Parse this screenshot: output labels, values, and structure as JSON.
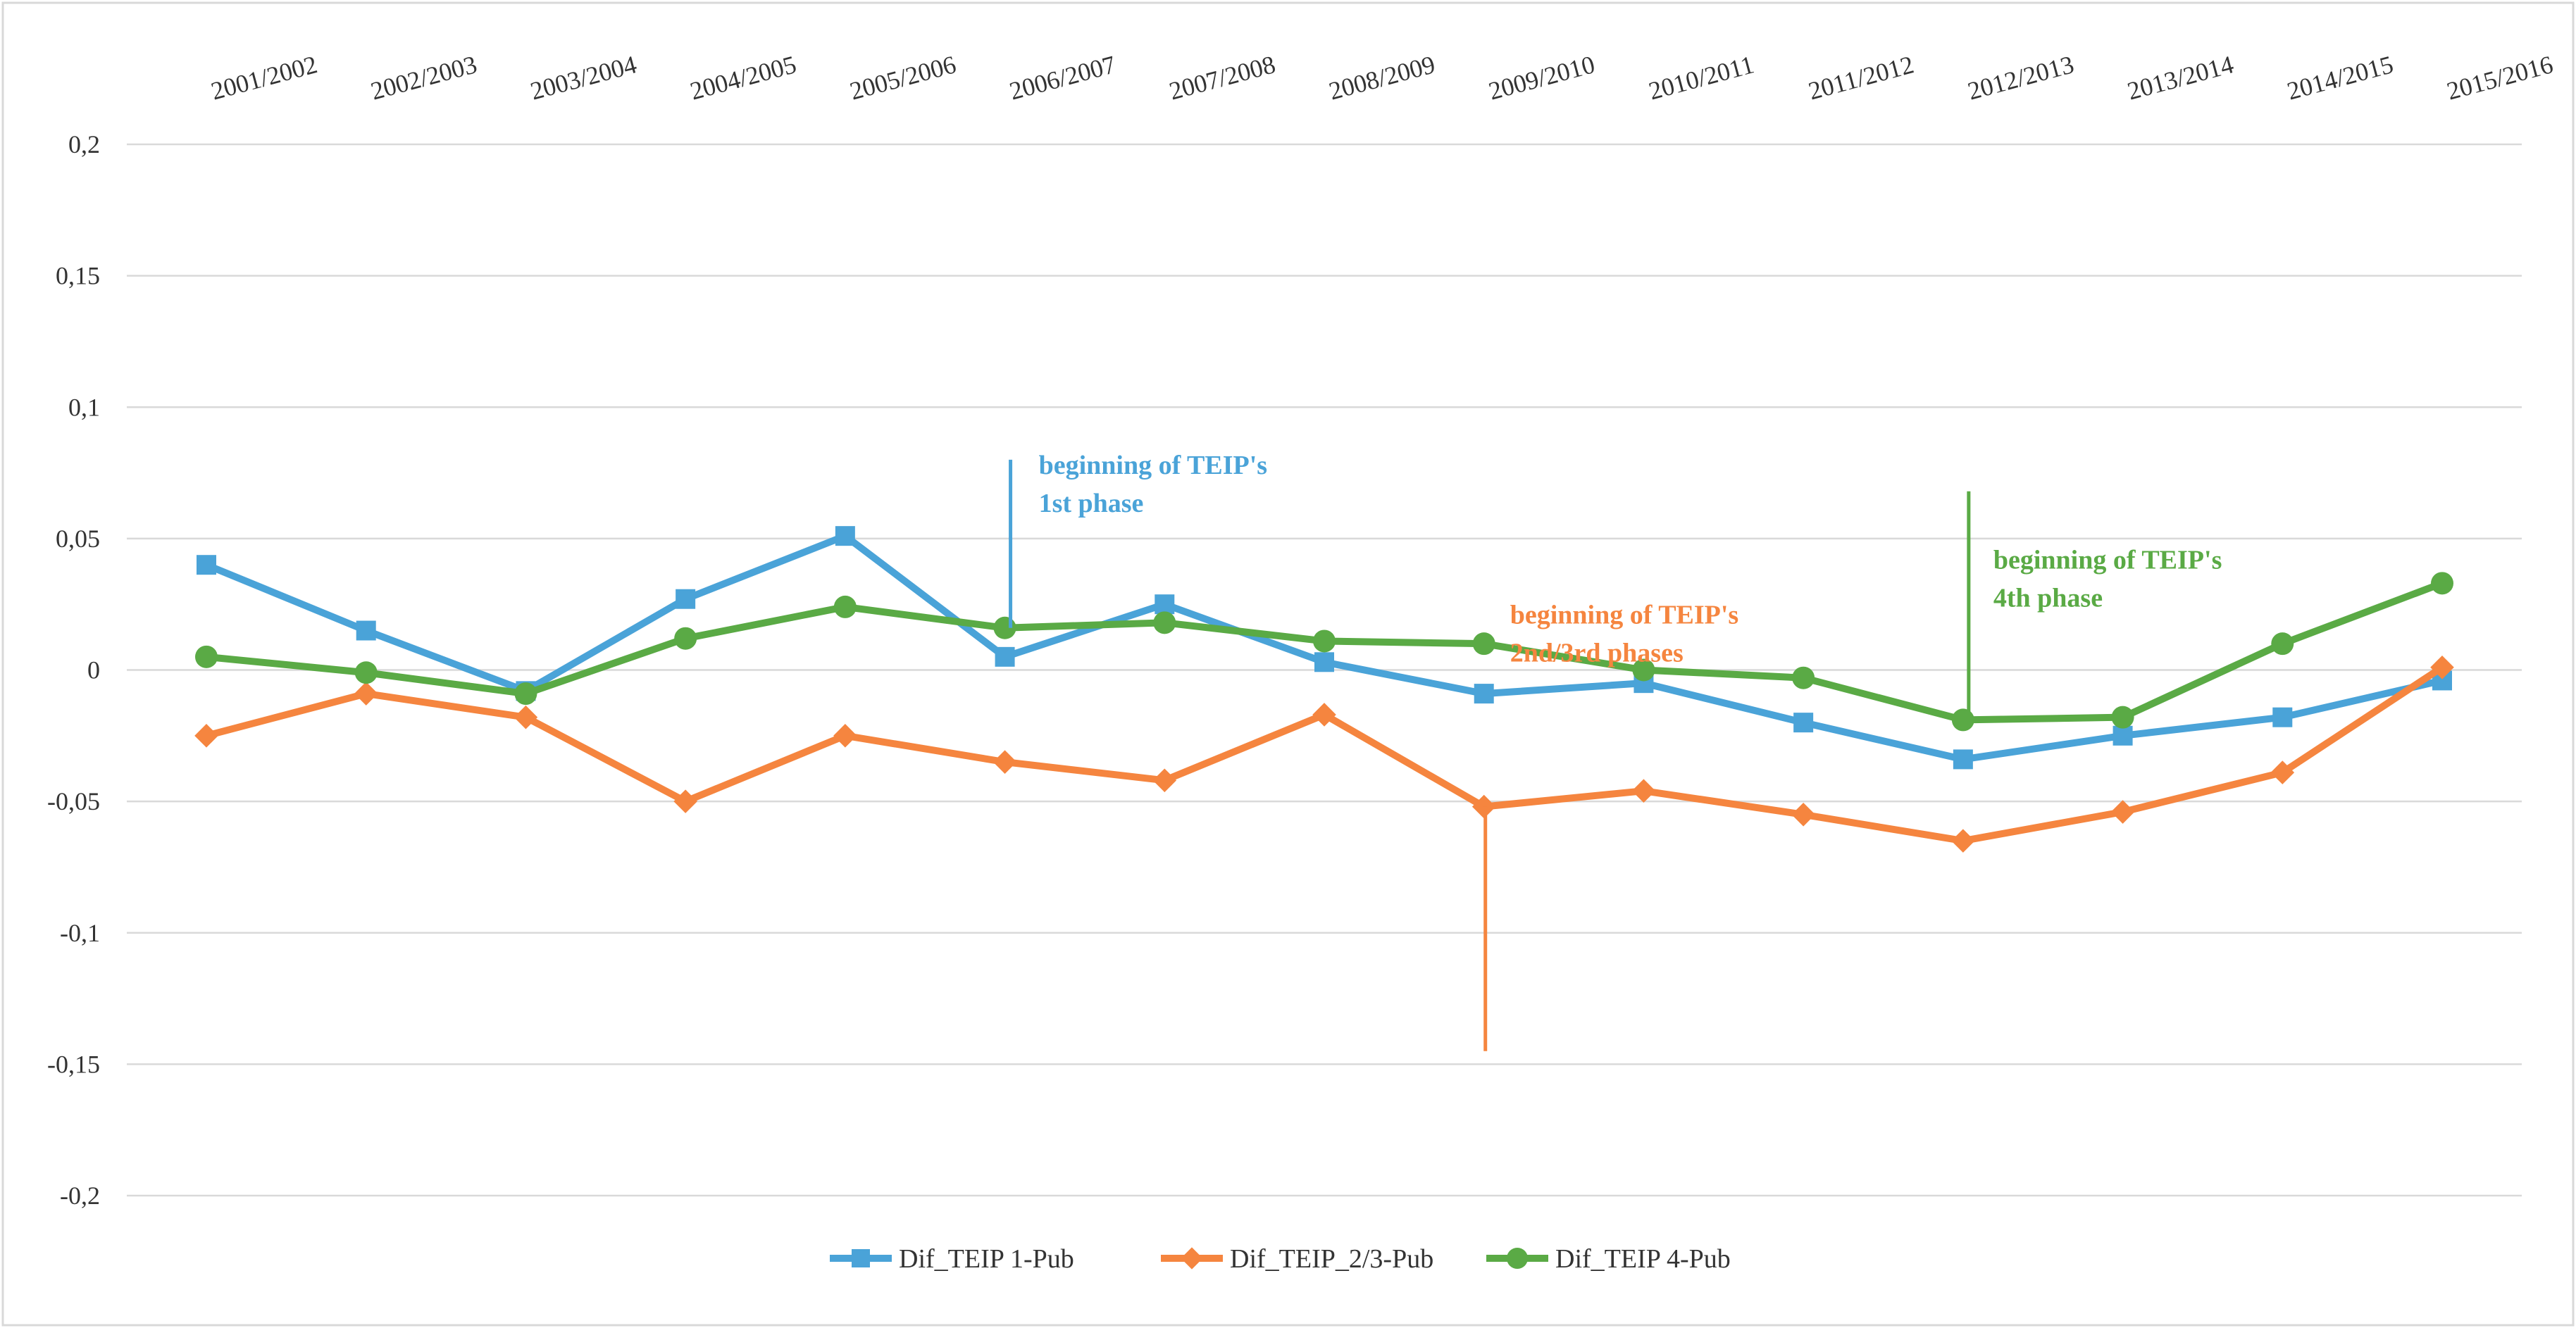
{
  "chart_data": {
    "type": "line",
    "title": "",
    "xlabel": "",
    "ylabel": "",
    "ylim": [
      -0.2,
      0.2
    ],
    "yticks": [
      {
        "value": 0.2,
        "label": "0,2"
      },
      {
        "value": 0.15,
        "label": "0,15"
      },
      {
        "value": 0.1,
        "label": "0,1"
      },
      {
        "value": 0.05,
        "label": "0,05"
      },
      {
        "value": 0,
        "label": "0"
      },
      {
        "value": -0.05,
        "label": "-0,05"
      },
      {
        "value": -0.1,
        "label": "-0,1"
      },
      {
        "value": -0.15,
        "label": "-0,15"
      },
      {
        "value": -0.2,
        "label": "-0,2"
      }
    ],
    "grid": true,
    "legend_position": "bottom-center",
    "categories": [
      "2001/2002",
      "2002/2003",
      "2003/2004",
      "2004/2005",
      "2005/2006",
      "2006/2007",
      "2007/2008",
      "2008/2009",
      "2009/2010",
      "2010/2011",
      "2011/2012",
      "2012/2013",
      "2013/2014",
      "2014/2015",
      "2015/2016"
    ],
    "series": [
      {
        "name": "Dif_TEIP 1-Pub",
        "color": "#4aa3d8",
        "marker": "square",
        "values": [
          0.04,
          0.015,
          -0.008,
          0.027,
          0.051,
          0.005,
          0.025,
          0.003,
          -0.009,
          -0.005,
          -0.02,
          -0.034,
          -0.025,
          -0.018,
          -0.004
        ]
      },
      {
        "name": "Dif_TEIP_2/3-Pub",
        "color": "#f5853f",
        "marker": "diamond",
        "values": [
          -0.025,
          -0.009,
          -0.018,
          -0.05,
          -0.025,
          -0.035,
          -0.042,
          -0.017,
          -0.052,
          -0.046,
          -0.055,
          -0.065,
          -0.054,
          -0.039,
          0.001
        ]
      },
      {
        "name": "Dif_TEIP 4-Pub",
        "color": "#5aaa45",
        "marker": "circle",
        "values": [
          0.005,
          -0.001,
          -0.009,
          0.012,
          0.024,
          0.016,
          0.018,
          0.011,
          0.01,
          0.0,
          -0.003,
          -0.019,
          -0.018,
          0.01,
          0.033
        ]
      }
    ],
    "annotations": [
      {
        "lines": [
          "beginning of TEIP's",
          "1st phase"
        ],
        "color": "#4aa3d8",
        "category_index": 5,
        "line_from": 0.08,
        "line_to": 0.016
      },
      {
        "lines": [
          "beginning of TEIP's",
          "2nd/3rd phases"
        ],
        "color": "#f5853f",
        "category_index": 8,
        "line_from": -0.052,
        "line_to": -0.145
      },
      {
        "lines": [
          "beginning of TEIP's",
          "4th phase"
        ],
        "color": "#5aaa45",
        "category_index": 11,
        "line_from": 0.068,
        "line_to": -0.019
      }
    ]
  }
}
